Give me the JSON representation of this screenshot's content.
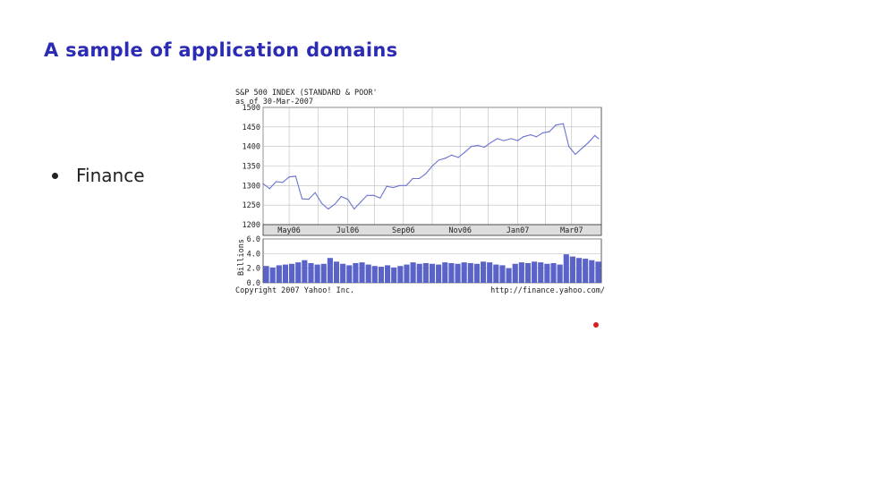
{
  "slide": {
    "title": "A sample of application domains",
    "bullets": [
      {
        "text": "Finance"
      }
    ]
  },
  "chart_data": {
    "type": "line",
    "title": "S&P 500 INDEX (STANDARD & POOR'",
    "subtitle": "as of 30-Mar-2007",
    "ylim": [
      1200,
      1500
    ],
    "yticks": [
      "1500",
      "1450",
      "1400",
      "1350",
      "1300",
      "1250",
      "1200"
    ],
    "x_tick_labels": [
      "May06",
      "Jul06",
      "Sep06",
      "Nov06",
      "Jan07",
      "Mar07"
    ],
    "grid": true,
    "colors": {
      "line": "#6c74d0",
      "bar": "#5a63c8",
      "grid": "#bbbbbb",
      "axis_bg": "#dddddd"
    },
    "series": [
      {
        "x": [
          "2006-04-03",
          "2006-04-10",
          "2006-04-17",
          "2006-04-24",
          "2006-05-01",
          "2006-05-08",
          "2006-05-15",
          "2006-05-22",
          "2006-05-29",
          "2006-06-05",
          "2006-06-12",
          "2006-06-19",
          "2006-06-26",
          "2006-07-03",
          "2006-07-10",
          "2006-07-17",
          "2006-07-24",
          "2006-07-31",
          "2006-08-07",
          "2006-08-14",
          "2006-08-21",
          "2006-08-28",
          "2006-09-04",
          "2006-09-11",
          "2006-09-18",
          "2006-09-25",
          "2006-10-02",
          "2006-10-09",
          "2006-10-16",
          "2006-10-23",
          "2006-10-30",
          "2006-11-06",
          "2006-11-13",
          "2006-11-20",
          "2006-11-27",
          "2006-12-04",
          "2006-12-11",
          "2006-12-18",
          "2006-12-26",
          "2007-01-02",
          "2007-01-08",
          "2007-01-16",
          "2007-01-22",
          "2007-01-29",
          "2007-02-05",
          "2007-02-12",
          "2007-02-20",
          "2007-02-26",
          "2007-03-05",
          "2007-03-12",
          "2007-03-19",
          "2007-03-26",
          "2007-03-30"
        ],
        "values": [
          1305,
          1292,
          1310,
          1308,
          1322,
          1324,
          1266,
          1265,
          1282,
          1255,
          1240,
          1252,
          1272,
          1265,
          1240,
          1258,
          1275,
          1275,
          1268,
          1298,
          1295,
          1300,
          1300,
          1318,
          1318,
          1330,
          1350,
          1365,
          1370,
          1378,
          1372,
          1385,
          1400,
          1403,
          1398,
          1410,
          1420,
          1415,
          1420,
          1415,
          1425,
          1430,
          1425,
          1435,
          1438,
          1455,
          1458,
          1400,
          1380,
          1395,
          1410,
          1428,
          1420
        ]
      }
    ],
    "volume": {
      "ylabel": "Billions",
      "ylim": [
        0,
        6
      ],
      "yticks": [
        "6.0",
        "4.0",
        "2.0",
        "0.0"
      ],
      "values": [
        2.3,
        2.1,
        2.4,
        2.5,
        2.6,
        2.8,
        3.1,
        2.7,
        2.5,
        2.6,
        3.4,
        2.9,
        2.6,
        2.4,
        2.7,
        2.8,
        2.5,
        2.3,
        2.2,
        2.4,
        2.1,
        2.3,
        2.5,
        2.8,
        2.6,
        2.7,
        2.6,
        2.5,
        2.8,
        2.7,
        2.6,
        2.8,
        2.7,
        2.6,
        2.9,
        2.8,
        2.5,
        2.4,
        2.0,
        2.6,
        2.8,
        2.7,
        2.9,
        2.8,
        2.6,
        2.7,
        2.5,
        3.9,
        3.6,
        3.4,
        3.3,
        3.1,
        2.9
      ]
    },
    "footer_left": "Copyright 2007 Yahoo! Inc.",
    "footer_right": "http://finance.yahoo.com/"
  }
}
